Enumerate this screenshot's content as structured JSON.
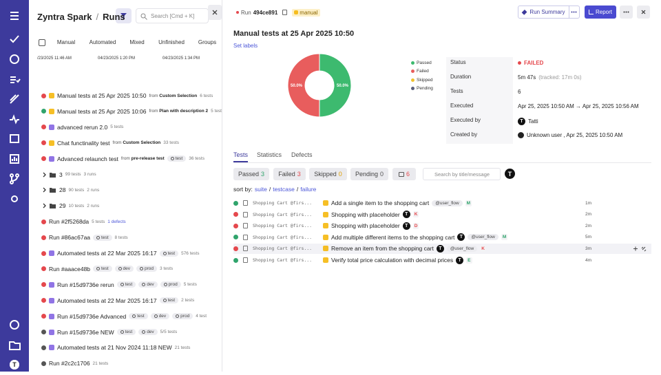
{
  "app": {
    "brand": "Zyntra Spark",
    "separator": "/",
    "section": "Runs",
    "search_placeholder": "Search [Cmd + K]",
    "avatar": "T"
  },
  "tabs": [
    "Manual",
    "Automated",
    "Mixed",
    "Unfinished",
    "Groups"
  ],
  "dates": [
    "/23/2025 11:46 AM",
    "04/23/2025 1:20 PM",
    "04/23/2025 1:34 PM"
  ],
  "from_label": "from",
  "runs": [
    {
      "status_color": "#e5484d",
      "icon_color": "#f5b400",
      "title": "Manual tests at 25 Apr 2025 10:50",
      "source": "Custom Selection",
      "count": "6 tests"
    },
    {
      "status_color": "#30a46c",
      "icon_color": "#f5b400",
      "title": "Manual tests at 25 Apr 2025 10:06",
      "source": "Plan with description 2",
      "count": "5 tests"
    },
    {
      "status_color": "#e5484d",
      "icon_color": "#7c5ce0",
      "title": "advanced rerun 2.0",
      "count": "5 tests"
    },
    {
      "status_color": "#e5484d",
      "icon_color": "#f5b400",
      "title": "Chat functinality test",
      "source": "Custom Selection",
      "count": "33 tests"
    },
    {
      "status_color": "#e5484d",
      "icon_color": "#7c5ce0",
      "title": "Advanced relaunch test",
      "source": "pre-release test",
      "tags": [
        "test"
      ],
      "count": "36 tests"
    },
    {
      "title": "3",
      "count": "99 tests",
      "runs_count": "3 runs"
    },
    {
      "title": "28",
      "count": "90 tests",
      "runs_count": "2 runs"
    },
    {
      "title": "29",
      "count": "10 tests",
      "runs_count": "2 runs"
    },
    {
      "status_color": "#e5484d",
      "title": "Run #2f5268da",
      "count": "5 tests",
      "defects": "1 defects"
    },
    {
      "status_color": "#e5484d",
      "title": "Run #86ac67aa",
      "tags": [
        "test"
      ],
      "count": "8 tests"
    },
    {
      "status_color": "#e5484d",
      "icon_color": "#7c5ce0",
      "title": "Automated tests at 22 Mar 2025 16:17",
      "tags": [
        "test"
      ],
      "count": "576 tests"
    },
    {
      "status_color": "#e5484d",
      "title": "Run #aaace48b",
      "tags": [
        "test",
        "dev",
        "prod"
      ],
      "count": "3 tests"
    },
    {
      "status_color": "#e5484d",
      "icon_color": "#7c5ce0",
      "title": "Run #15d9736e rerun",
      "tags": [
        "test",
        "dev",
        "prod"
      ],
      "count": "5 tests"
    },
    {
      "status_color": "#e5484d",
      "icon_color": "#7c5ce0",
      "title": "Automated tests at 22 Mar 2025 16:17",
      "tags": [
        "test"
      ],
      "count": "2 tests"
    },
    {
      "status_color": "#e5484d",
      "icon_color": "#7c5ce0",
      "title": "Run #15d9736e Advanced",
      "tags": [
        "test",
        "dev",
        "prod"
      ],
      "count": "4 test"
    },
    {
      "status_color": "#555555",
      "icon_color": "#7c5ce0",
      "title": "Run #15d9736e NEW",
      "tags": [
        "test",
        "dev"
      ],
      "count": "5/5 tests"
    },
    {
      "status_color": "#555555",
      "icon_color": "#7c5ce0",
      "title": "Automated tests at 21 Nov 2024 11:18 NEW",
      "count": "21 tests"
    },
    {
      "status_color": "#555555",
      "title": "Run #2c2c1706",
      "count": "21 tests"
    }
  ],
  "run": {
    "label": "Run",
    "id": "494ce891",
    "type": "manual",
    "summary_button": "Run Summary",
    "report_button": "Report",
    "title": "Manual tests at 25 Apr 2025 10:50",
    "set_labels": "Set labels"
  },
  "pie": {
    "type": "pie",
    "categories": [
      "Passed",
      "Failed",
      "Skipped",
      "Pending"
    ],
    "values": [
      50,
      50,
      0,
      0
    ],
    "value_labels": [
      "50.0%",
      "50.0%",
      null,
      null
    ],
    "colors": [
      "#3dba6f",
      "#e85d5d",
      "#f0c230",
      "#5a5f7a"
    ]
  },
  "info": [
    {
      "label": "Status",
      "value": "FAILED"
    },
    {
      "label": "Duration",
      "value": "5m 47s",
      "note": "(tracked: 17m 0s)"
    },
    {
      "label": "Tests",
      "value": "6"
    },
    {
      "label": "Executed",
      "value": "Apr 25, 2025 10:50 AM → Apr 25, 2025 10:56 AM"
    },
    {
      "label": "Executed by",
      "value": "Tatti",
      "avatar": "T"
    },
    {
      "label": "Created by",
      "value": "Unknown user , Apr 25, 2025 10:50 AM"
    }
  ],
  "detail_tabs": [
    "Tests",
    "Statistics",
    "Defects"
  ],
  "chips": [
    {
      "label": "Passed",
      "count": 3,
      "color": "#30a46c"
    },
    {
      "label": "Failed",
      "count": 3,
      "color": "#e5484d"
    },
    {
      "label": "Skipped",
      "count": 0,
      "color": "#e0a000"
    },
    {
      "label": "Pending",
      "count": 0,
      "color": "#555555"
    }
  ],
  "comments_count": 6,
  "test_search_placeholder": "Search by title/message",
  "sort": {
    "label": "sort by:",
    "options": [
      "suite",
      "testcase",
      "failure"
    ]
  },
  "tests": [
    {
      "status_color": "#30a46c",
      "suite": "Shopping Cart @firs...",
      "title": "Add a single item to the shopping cart",
      "tag": "@user_flow",
      "assignee": "M",
      "assignee_color": "#30a46c",
      "time": "1m"
    },
    {
      "status_color": "#e5484d",
      "suite": "Shopping Cart @firs...",
      "title": "Shopping with placeholder",
      "avatar": "T",
      "assignee": "K",
      "assignee_color": "#e5484d",
      "time": "2m"
    },
    {
      "status_color": "#e5484d",
      "suite": "Shopping Cart @firs...",
      "title": "Shopping with placeholder",
      "avatar": "T",
      "assignee": "D",
      "assignee_color": "#e5484d",
      "time": "2m"
    },
    {
      "status_color": "#30a46c",
      "suite": "Shopping Cart @firs...",
      "title": "Add multiple different items to the shopping cart",
      "avatar": "T",
      "tag": "@user_flow",
      "assignee": "M",
      "assignee_color": "#30a46c",
      "time": "5m"
    },
    {
      "status_color": "#e5484d",
      "suite": "Shopping Cart @firs...",
      "title": "Remove an item from the shopping cart",
      "avatar": "T",
      "tag": "@user_flow",
      "assignee": "K",
      "assignee_color": "#e5484d",
      "time": "3m"
    },
    {
      "status_color": "#30a46c",
      "suite": "Shopping Cart @firs...",
      "title": "Verify total price calculation with decimal prices",
      "avatar": "T",
      "assignee": "E",
      "assignee_color": "#30a46c",
      "time": "4m"
    }
  ]
}
